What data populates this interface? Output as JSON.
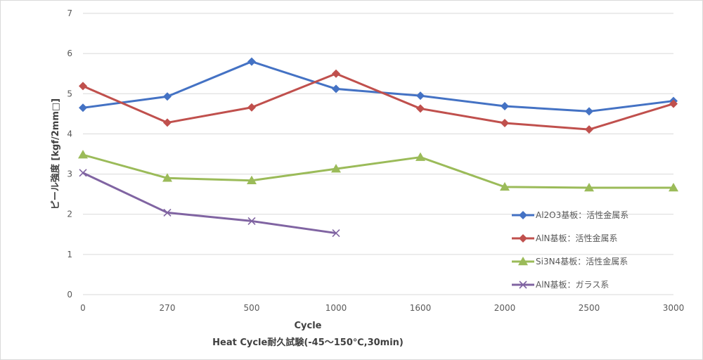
{
  "chart_data": {
    "type": "line",
    "title": "",
    "xlabel": "Cycle",
    "xlabel_sub": "Heat Cycle耐久試験(-45～150℃,30min)",
    "ylabel": "ピール強度 [kgf/2mm□]",
    "categories": [
      "0",
      "270",
      "500",
      "1000",
      "1600",
      "2000",
      "2500",
      "3000"
    ],
    "ylim": [
      0,
      7
    ],
    "yticks": [
      0,
      1,
      2,
      3,
      4,
      5,
      6,
      7
    ],
    "grid": "horizontal",
    "legend_position": "right",
    "series": [
      {
        "name": "Al2O3基板：活性金属系",
        "color": "#4472c4",
        "marker": "diamond",
        "values": [
          4.65,
          4.93,
          5.8,
          5.12,
          4.95,
          4.69,
          4.56,
          4.82
        ]
      },
      {
        "name": "AlN基板：活性金属系",
        "color": "#c0504d",
        "marker": "diamond",
        "values": [
          5.19,
          4.28,
          4.66,
          5.5,
          4.63,
          4.27,
          4.11,
          4.75
        ]
      },
      {
        "name": "Si3N4基板：活性金属系",
        "color": "#9bbb59",
        "marker": "triangle",
        "values": [
          3.48,
          2.9,
          2.84,
          3.13,
          3.42,
          2.68,
          2.66,
          2.66
        ]
      },
      {
        "name": "AlN基板：ガラス系",
        "color": "#8064a2",
        "marker": "x",
        "values": [
          3.03,
          2.04,
          1.83,
          1.53,
          null,
          null,
          null,
          null
        ]
      }
    ]
  }
}
